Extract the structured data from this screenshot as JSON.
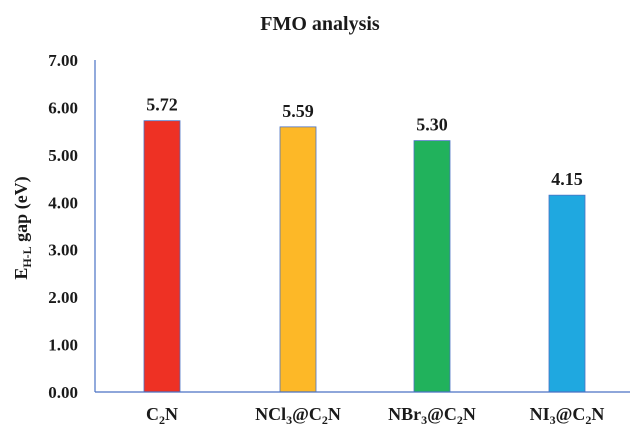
{
  "chart_data": {
    "type": "bar",
    "title": "FMO analysis",
    "ylabel": {
      "main": "E",
      "sub": "H-L",
      "rest": " gap (eV)"
    },
    "xlabel": "",
    "ylim": [
      0,
      7
    ],
    "yticks": [
      "0.00",
      "1.00",
      "2.00",
      "3.00",
      "4.00",
      "5.00",
      "6.00",
      "7.00"
    ],
    "categories": [
      {
        "parts": [
          [
            "C",
            false
          ],
          [
            "2",
            true
          ],
          [
            "N",
            false
          ]
        ]
      },
      {
        "parts": [
          [
            "NCl",
            false
          ],
          [
            "3",
            true
          ],
          [
            "@C",
            false
          ],
          [
            "2",
            true
          ],
          [
            "N",
            false
          ]
        ]
      },
      {
        "parts": [
          [
            "NBr",
            false
          ],
          [
            "3",
            true
          ],
          [
            "@C",
            false
          ],
          [
            "2",
            true
          ],
          [
            "N",
            false
          ]
        ]
      },
      {
        "parts": [
          [
            "NI",
            false
          ],
          [
            "3",
            true
          ],
          [
            "@C",
            false
          ],
          [
            "2",
            true
          ],
          [
            "N",
            false
          ]
        ]
      }
    ],
    "values": [
      5.72,
      5.59,
      5.3,
      4.15
    ],
    "value_labels": [
      "5.72",
      "5.59",
      "5.30",
      "4.15"
    ],
    "colors": [
      "#ee3124",
      "#fdb827",
      "#21b25c",
      "#1fa8e0"
    ],
    "grid": false,
    "legend": "none"
  }
}
